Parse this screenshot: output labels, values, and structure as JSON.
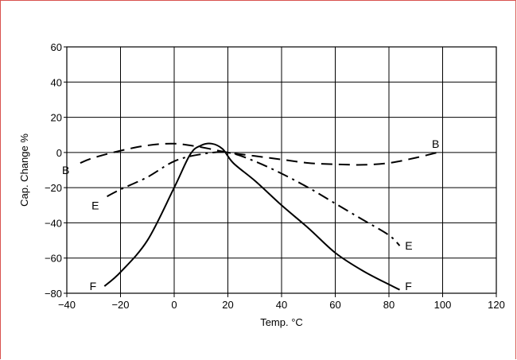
{
  "chart_data": {
    "type": "line",
    "title": "",
    "xlabel": "Temp. °C",
    "ylabel": "Cap. Change %",
    "xlim": [
      -40,
      120
    ],
    "ylim": [
      -80,
      60
    ],
    "x_ticks": [
      -40,
      -20,
      0,
      20,
      40,
      60,
      80,
      100,
      120
    ],
    "y_ticks": [
      60,
      40,
      20,
      0,
      -20,
      -40,
      -60,
      -80
    ],
    "x_tick_labels": [
      "−40",
      "−20",
      "0",
      "20",
      "40",
      "60",
      "80",
      "100",
      "120"
    ],
    "y_tick_labels": [
      "60",
      "40",
      "20",
      "0",
      "−20",
      "−40",
      "−60",
      "−80"
    ],
    "grid": true,
    "series": [
      {
        "name": "B",
        "style": "dashed",
        "points": [
          [
            -35,
            -6
          ],
          [
            -30,
            -3
          ],
          [
            -20,
            1
          ],
          [
            -10,
            4
          ],
          [
            0,
            5
          ],
          [
            10,
            3
          ],
          [
            20,
            0
          ],
          [
            30,
            -2
          ],
          [
            40,
            -4
          ],
          [
            50,
            -6
          ],
          [
            60,
            -6.7
          ],
          [
            70,
            -7
          ],
          [
            80,
            -6
          ],
          [
            90,
            -3
          ],
          [
            98,
            0
          ]
        ]
      },
      {
        "name": "E",
        "style": "dash-dot",
        "points": [
          [
            -25,
            -25
          ],
          [
            -20,
            -21
          ],
          [
            -10,
            -14
          ],
          [
            0,
            -5
          ],
          [
            10,
            -1
          ],
          [
            20,
            0
          ],
          [
            30,
            -5
          ],
          [
            40,
            -12
          ],
          [
            50,
            -20
          ],
          [
            60,
            -29
          ],
          [
            70,
            -38
          ],
          [
            80,
            -47
          ],
          [
            84,
            -53
          ]
        ]
      },
      {
        "name": "F",
        "style": "solid",
        "points": [
          [
            -26,
            -76
          ],
          [
            -20,
            -68
          ],
          [
            -10,
            -50
          ],
          [
            0,
            -20
          ],
          [
            6,
            -1
          ],
          [
            10,
            4
          ],
          [
            14,
            5
          ],
          [
            18,
            2
          ],
          [
            22,
            -6
          ],
          [
            30,
            -16
          ],
          [
            40,
            -30
          ],
          [
            50,
            -43
          ],
          [
            60,
            -57
          ],
          [
            70,
            -67
          ],
          [
            80,
            -75
          ],
          [
            84,
            -78
          ]
        ]
      }
    ],
    "labels": [
      {
        "text": "B",
        "x": -39,
        "y": -10,
        "anchor": "end"
      },
      {
        "text": "B",
        "x": 96,
        "y": 5,
        "anchor": "start"
      },
      {
        "text": "E",
        "x": -28,
        "y": -30,
        "anchor": "end"
      },
      {
        "text": "E",
        "x": 86,
        "y": -53,
        "anchor": "start"
      },
      {
        "text": "F",
        "x": -29,
        "y": -76,
        "anchor": "end"
      },
      {
        "text": "F",
        "x": 86,
        "y": -76,
        "anchor": "start"
      }
    ]
  }
}
